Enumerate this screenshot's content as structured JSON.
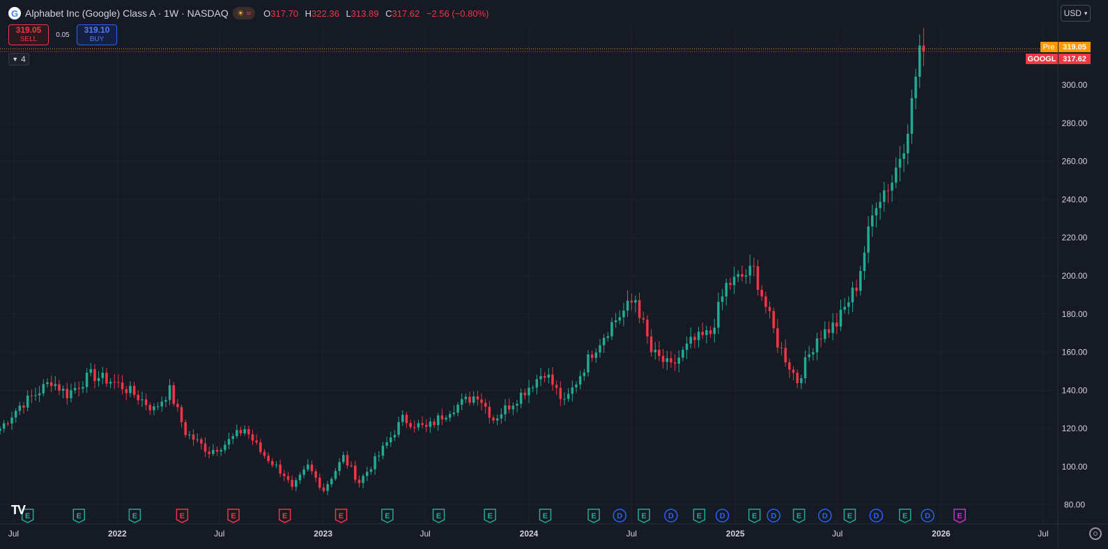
{
  "header": {
    "logo_letter": "G",
    "title": "Alphabet Inc (Google) Class A · 1W · NASDAQ",
    "ohlc": {
      "o_label": "O",
      "o_value": "317.70",
      "h_label": "H",
      "h_value": "322.36",
      "l_label": "L",
      "l_value": "313.89",
      "c_label": "C",
      "c_value": "317.62",
      "change": "−2.56 (−0.80%)"
    }
  },
  "trade": {
    "sell_price": "319.05",
    "sell_label": "SELL",
    "spread": "0.05",
    "buy_price": "319.10",
    "buy_label": "BUY"
  },
  "indicators_toggle": {
    "count": "4"
  },
  "currency": {
    "label": "USD"
  },
  "price_tags": {
    "pre_label": "Pre",
    "pre_value": "319.05",
    "symbol": "GOOGL",
    "last_value": "317.62"
  },
  "colors": {
    "up": "#22ab94",
    "down": "#f23645",
    "pre": "#ff9800",
    "earnings": "#22ab94",
    "earnings_missed": "#f23645",
    "dividend": "#2962ff",
    "upcoming": "#d02cd6",
    "background": "#161a25",
    "text": "#d1d4dc"
  },
  "chart_data": {
    "type": "candlestick",
    "ylim": [
      70,
      330
    ],
    "y_ticks": [
      "80.00",
      "100.00",
      "120.00",
      "140.00",
      "160.00",
      "180.00",
      "200.00",
      "220.00",
      "240.00",
      "260.00",
      "280.00",
      "300.00"
    ],
    "x_ticks": [
      {
        "label": "Jul",
        "date": "2021-07-01"
      },
      {
        "label": "2022",
        "date": "2022-01-01"
      },
      {
        "label": "Jul",
        "date": "2022-07-01"
      },
      {
        "label": "2023",
        "date": "2023-01-01"
      },
      {
        "label": "Jul",
        "date": "2023-07-01"
      },
      {
        "label": "2024",
        "date": "2024-01-01"
      },
      {
        "label": "Jul",
        "date": "2024-07-01"
      },
      {
        "label": "2025",
        "date": "2025-01-01"
      },
      {
        "label": "Jul",
        "date": "2025-07-01"
      },
      {
        "label": "2026",
        "date": "2026-01-01"
      },
      {
        "label": "Jul",
        "date": "2026-07-01"
      }
    ],
    "x_range": [
      "2021-06-07",
      "2026-07-27"
    ],
    "last_price": 317.62,
    "pre_price": 319.05,
    "anchors": [
      [
        "2021-06-07",
        120
      ],
      [
        "2021-07-12",
        132
      ],
      [
        "2021-08-09",
        138
      ],
      [
        "2021-09-06",
        145
      ],
      [
        "2021-10-04",
        138
      ],
      [
        "2021-11-15",
        148
      ],
      [
        "2021-12-20",
        145
      ],
      [
        "2022-01-10",
        142
      ],
      [
        "2022-01-31",
        138
      ],
      [
        "2022-02-14",
        135
      ],
      [
        "2022-03-07",
        130
      ],
      [
        "2022-04-04",
        140
      ],
      [
        "2022-05-02",
        118
      ],
      [
        "2022-06-13",
        108
      ],
      [
        "2022-07-11",
        112
      ],
      [
        "2022-08-15",
        120
      ],
      [
        "2022-09-12",
        108
      ],
      [
        "2022-10-24",
        96
      ],
      [
        "2022-11-07",
        88
      ],
      [
        "2022-12-05",
        100
      ],
      [
        "2023-01-02",
        88
      ],
      [
        "2023-02-06",
        105
      ],
      [
        "2023-03-06",
        92
      ],
      [
        "2023-04-10",
        106
      ],
      [
        "2023-05-22",
        125
      ],
      [
        "2023-07-03",
        120
      ],
      [
        "2023-08-14",
        130
      ],
      [
        "2023-10-02",
        138
      ],
      [
        "2023-10-30",
        125
      ],
      [
        "2023-12-04",
        134
      ],
      [
        "2024-01-29",
        150
      ],
      [
        "2024-03-04",
        133
      ],
      [
        "2024-04-22",
        160
      ],
      [
        "2024-05-27",
        175
      ],
      [
        "2024-07-08",
        188
      ],
      [
        "2024-08-05",
        160
      ],
      [
        "2024-09-09",
        152
      ],
      [
        "2024-10-14",
        165
      ],
      [
        "2024-11-18",
        170
      ],
      [
        "2024-12-16",
        195
      ],
      [
        "2025-02-03",
        203
      ],
      [
        "2025-03-17",
        165
      ],
      [
        "2025-04-21",
        145
      ],
      [
        "2025-05-26",
        168
      ],
      [
        "2025-06-30",
        175
      ],
      [
        "2025-08-04",
        195
      ],
      [
        "2025-09-08",
        240
      ],
      [
        "2025-10-06",
        250
      ],
      [
        "2025-10-27",
        270
      ],
      [
        "2025-11-10",
        290
      ],
      [
        "2025-11-24",
        320
      ],
      [
        "2025-12-01",
        318
      ]
    ],
    "events": [
      {
        "type": "E",
        "date": "2021-07-26",
        "status": "beat"
      },
      {
        "type": "E",
        "date": "2021-10-25",
        "status": "beat"
      },
      {
        "type": "E",
        "date": "2022-02-01",
        "status": "beat"
      },
      {
        "type": "E",
        "date": "2022-04-26",
        "status": "missed"
      },
      {
        "type": "E",
        "date": "2022-07-26",
        "status": "missed"
      },
      {
        "type": "E",
        "date": "2022-10-25",
        "status": "missed"
      },
      {
        "type": "E",
        "date": "2023-02-02",
        "status": "missed"
      },
      {
        "type": "E",
        "date": "2023-04-25",
        "status": "beat"
      },
      {
        "type": "E",
        "date": "2023-07-25",
        "status": "beat"
      },
      {
        "type": "E",
        "date": "2023-10-24",
        "status": "beat"
      },
      {
        "type": "E",
        "date": "2024-01-30",
        "status": "beat"
      },
      {
        "type": "E",
        "date": "2024-04-25",
        "status": "beat"
      },
      {
        "type": "D",
        "date": "2024-06-10",
        "status": "dividend"
      },
      {
        "type": "E",
        "date": "2024-07-23",
        "status": "beat"
      },
      {
        "type": "D",
        "date": "2024-09-09",
        "status": "dividend"
      },
      {
        "type": "E",
        "date": "2024-10-29",
        "status": "beat"
      },
      {
        "type": "D",
        "date": "2024-12-09",
        "status": "dividend"
      },
      {
        "type": "E",
        "date": "2025-02-04",
        "status": "beat"
      },
      {
        "type": "D",
        "date": "2025-03-10",
        "status": "dividend"
      },
      {
        "type": "E",
        "date": "2025-04-24",
        "status": "beat"
      },
      {
        "type": "D",
        "date": "2025-06-09",
        "status": "dividend"
      },
      {
        "type": "E",
        "date": "2025-07-23",
        "status": "beat"
      },
      {
        "type": "D",
        "date": "2025-09-08",
        "status": "dividend"
      },
      {
        "type": "E",
        "date": "2025-10-29",
        "status": "beat"
      },
      {
        "type": "D",
        "date": "2025-12-08",
        "status": "dividend"
      },
      {
        "type": "E",
        "date": "2026-02-03",
        "status": "upcoming"
      }
    ]
  }
}
